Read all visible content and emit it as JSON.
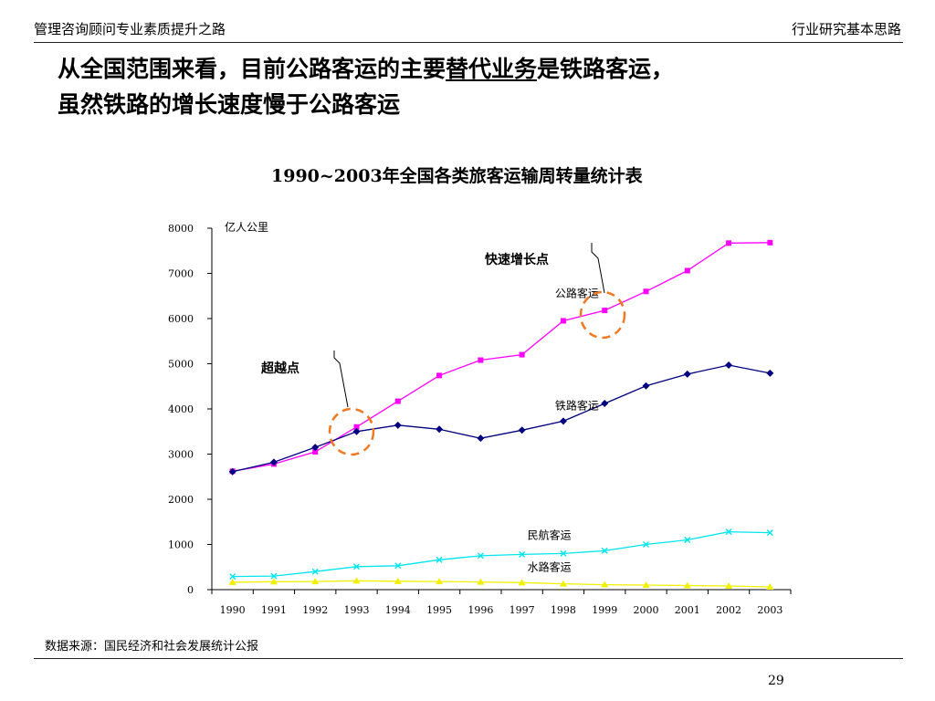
{
  "header": {
    "left": "管理咨询顾问专业素质提升之路",
    "right": "行业研究基本思路"
  },
  "headline": {
    "line1_before": "从全国范围来看，目前公路客运的主要",
    "line1_underlined": "替代业务",
    "line1_after": "是铁路客运，",
    "line2": "虽然铁路的增长速度慢于公路客运"
  },
  "chart_data": {
    "type": "line",
    "title": "1990~2003年全国各类旅客运输周转量统计表",
    "ylabel": "亿人公里",
    "ylim": [
      0,
      8000
    ],
    "yticks": [
      0,
      1000,
      2000,
      3000,
      4000,
      5000,
      6000,
      7000,
      8000
    ],
    "grid": false,
    "categories": [
      "1990",
      "1991",
      "1992",
      "1993",
      "1994",
      "1995",
      "1996",
      "1997",
      "1998",
      "1999",
      "2000",
      "2001",
      "2002",
      "2003"
    ],
    "series": [
      {
        "name": "公路客运",
        "color": "#ff00ff",
        "marker": "square",
        "values": [
          2620,
          2780,
          3050,
          3600,
          4170,
          4740,
          5080,
          5200,
          5950,
          6180,
          6600,
          7060,
          7670,
          7680
        ]
      },
      {
        "name": "铁路客运",
        "color": "#000080",
        "marker": "diamond",
        "values": [
          2610,
          2820,
          3150,
          3500,
          3640,
          3550,
          3350,
          3530,
          3730,
          4120,
          4510,
          4770,
          4970,
          4790
        ]
      },
      {
        "name": "民航客运",
        "color": "#00e5ee",
        "marker": "x",
        "values": [
          290,
          300,
          400,
          510,
          530,
          660,
          750,
          780,
          800,
          860,
          1000,
          1100,
          1280,
          1260
        ]
      },
      {
        "name": "水路客运",
        "color": "#f0f000",
        "marker": "triangle",
        "values": [
          165,
          175,
          180,
          195,
          185,
          180,
          170,
          155,
          130,
          110,
          100,
          90,
          80,
          60
        ]
      }
    ],
    "annotations": [
      {
        "text": "超越点",
        "year": "1993"
      },
      {
        "text": "快速增长点",
        "year": "1999"
      }
    ]
  },
  "source_note": "数据来源：国民经济和社会发展统计公报",
  "page_number": "29"
}
